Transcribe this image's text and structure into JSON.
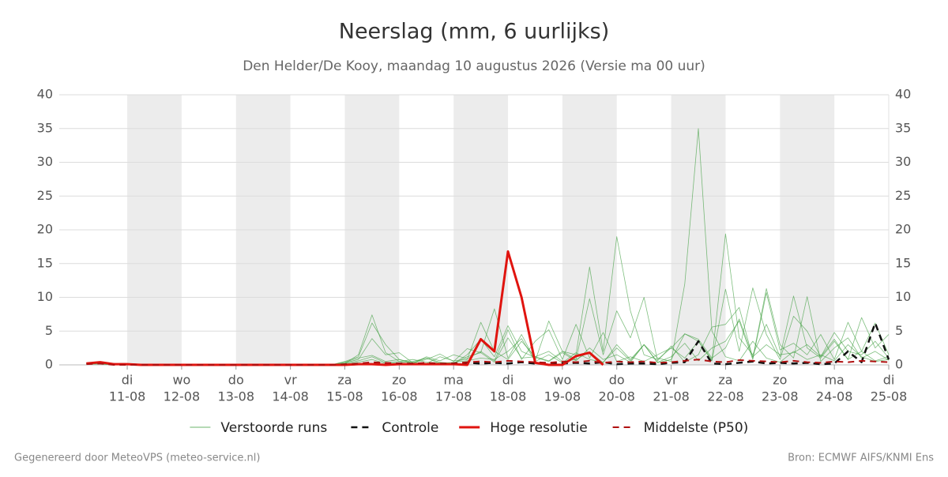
{
  "chart_data": {
    "type": "line",
    "title": "Neerslag (mm, 6 uurlijks)",
    "subtitle": "Den Helder/De Kooy, maandag 10 augustus 2026 (Versie ma 00 uur)",
    "footer_left": "Gegenereerd door MeteoVPS (meteo-service.nl)",
    "footer_right": "Bron: ECMWF AIFS/KNMI Ens",
    "x": [
      6,
      12,
      18,
      24,
      30,
      36,
      42,
      48,
      54,
      60,
      66,
      72,
      78,
      84,
      90,
      96,
      102,
      108,
      114,
      120,
      126,
      132,
      138,
      144,
      150,
      156,
      162,
      168,
      174,
      180,
      186,
      192,
      198,
      204,
      210,
      216,
      222,
      228,
      234,
      240,
      246,
      252,
      258,
      264,
      270,
      276,
      282,
      288,
      294,
      300,
      306,
      312,
      318,
      324,
      330,
      336,
      342,
      348,
      354,
      360
    ],
    "xlim": [
      -6,
      360
    ],
    "xticks": [
      {
        "value": 24,
        "day": "di",
        "label": "11-08"
      },
      {
        "value": 48,
        "day": "wo",
        "label": "12-08"
      },
      {
        "value": 72,
        "day": "do",
        "label": "13-08"
      },
      {
        "value": 96,
        "day": "vr",
        "label": "14-08"
      },
      {
        "value": 120,
        "day": "za",
        "label": "15-08"
      },
      {
        "value": 144,
        "day": "zo",
        "label": "16-08"
      },
      {
        "value": 168,
        "day": "ma",
        "label": "17-08"
      },
      {
        "value": 192,
        "day": "di",
        "label": "18-08"
      },
      {
        "value": 216,
        "day": "wo",
        "label": "19-08"
      },
      {
        "value": 240,
        "day": "do",
        "label": "20-08"
      },
      {
        "value": 264,
        "day": "vr",
        "label": "21-08"
      },
      {
        "value": 288,
        "day": "za",
        "label": "22-08"
      },
      {
        "value": 312,
        "day": "zo",
        "label": "23-08"
      },
      {
        "value": 336,
        "day": "ma",
        "label": "24-08"
      },
      {
        "value": 360,
        "day": "di",
        "label": "25-08"
      }
    ],
    "ylim": [
      0,
      40
    ],
    "yticks": [
      0,
      5,
      10,
      15,
      20,
      25,
      30,
      35,
      40
    ],
    "grid": true,
    "legend": "bottom",
    "series": [
      {
        "name": "Verstoorde runs",
        "color": "#3a9d3a",
        "width": 0.8,
        "dash": false,
        "members": [
          [
            0.3,
            0.4,
            0.1,
            0.1,
            0,
            0,
            0,
            0,
            0,
            0,
            0,
            0,
            0,
            0,
            0,
            0,
            0,
            0,
            0,
            0.2,
            1.5,
            7.4,
            1.8,
            0.5,
            0.3,
            1.0,
            0.4,
            0.2,
            1.5,
            3.8,
            1.2,
            5.8,
            2.0,
            1.1,
            0.5,
            1.8,
            0.6,
            2.5,
            0.8,
            1.5,
            0.4,
            3.0,
            1.0,
            0.5,
            12.0,
            35.0,
            5.0,
            1.2,
            0.6,
            3.5,
            1.0,
            0.4,
            2.0,
            0.8,
            1.5,
            0.6,
            3.0,
            1.2,
            0.5,
            0.8
          ],
          [
            0.2,
            0.3,
            0.1,
            0,
            0,
            0,
            0,
            0,
            0,
            0,
            0,
            0,
            0,
            0,
            0,
            0,
            0,
            0,
            0,
            0.5,
            1.2,
            6.2,
            3.0,
            0.8,
            0.4,
            0.2,
            1.2,
            0.6,
            0.8,
            6.3,
            2.0,
            0.8,
            3.5,
            1.2,
            0.6,
            2.0,
            1.5,
            14.5,
            2.0,
            19.0,
            8.0,
            1.5,
            0.8,
            2.5,
            1.0,
            3.5,
            0.8,
            19.4,
            4.0,
            1.5,
            6.0,
            1.2,
            10.2,
            2.5,
            1.0,
            3.5,
            0.8,
            2.0,
            0.6,
            1.2
          ],
          [
            0.1,
            0.2,
            0,
            0,
            0,
            0,
            0,
            0,
            0,
            0,
            0,
            0,
            0,
            0,
            0,
            0,
            0,
            0,
            0,
            0.3,
            0.8,
            3.9,
            1.5,
            1.8,
            0.3,
            0.8,
            1.6,
            0.5,
            2.4,
            1.8,
            8.3,
            1.0,
            4.5,
            0.6,
            6.5,
            2.0,
            0.8,
            9.8,
            1.5,
            8.0,
            4.0,
            10.0,
            0.6,
            2.8,
            0.4,
            1.5,
            5.6,
            6.0,
            8.5,
            1.0,
            11.3,
            3.0,
            1.0,
            10.1,
            0.5,
            2.5,
            4.0,
            1.0,
            2.0,
            0.7
          ],
          [
            0.2,
            0.3,
            0.1,
            0,
            0,
            0,
            0,
            0,
            0,
            0,
            0,
            0,
            0,
            0,
            0,
            0,
            0,
            0,
            0,
            0.4,
            1.0,
            1.4,
            0.5,
            0.8,
            0.2,
            1.2,
            0.6,
            1.5,
            0.9,
            2.0,
            0.6,
            5.2,
            0.8,
            3.5,
            5.2,
            0.8,
            6.0,
            1.0,
            4.8,
            0.5,
            1.2,
            0.5,
            1.5,
            2.5,
            4.6,
            3.5,
            0.6,
            11.2,
            2.0,
            11.4,
            4.5,
            0.8,
            7.2,
            5.0,
            1.2,
            3.8,
            0.8,
            7.0,
            2.5,
            4.5
          ],
          [
            0.2,
            0.2,
            0,
            0,
            0,
            0,
            0,
            0,
            0,
            0,
            0,
            0,
            0,
            0,
            0,
            0,
            0,
            0,
            0,
            0.2,
            0.6,
            1.2,
            0.3,
            0.5,
            0.8,
            0.4,
            0.3,
            0.2,
            1.2,
            1.8,
            0.4,
            4.0,
            1.0,
            1.2,
            2.0,
            0.5,
            0.8,
            1.9,
            0.3,
            3.0,
            0.8,
            3.0,
            0.4,
            1.2,
            3.2,
            0.6,
            2.5,
            3.5,
            6.5,
            0.8,
            10.7,
            2.2,
            3.2,
            1.5,
            4.5,
            0.8,
            6.3,
            2.0,
            6.2,
            1.5
          ],
          [
            0.1,
            0.1,
            0,
            0,
            0,
            0,
            0,
            0,
            0,
            0,
            0,
            0,
            0,
            0,
            0,
            0,
            0,
            0,
            0,
            0.1,
            0.4,
            0.8,
            0.2,
            0.3,
            0.5,
            1.0,
            0.2,
            0.4,
            0.6,
            1.0,
            0.8,
            2.0,
            3.9,
            0.5,
            1.5,
            0.3,
            1.8,
            0.8,
            0.4,
            2.5,
            0.6,
            3.0,
            0.3,
            0.8,
            4.6,
            3.8,
            1.0,
            2.5,
            6.8,
            1.2,
            3.0,
            1.5,
            1.8,
            3.0,
            1.2,
            4.8,
            2.0,
            1.5,
            3.5,
            1.0
          ]
        ]
      },
      {
        "name": "Controle",
        "color": "#111111",
        "width": 2.5,
        "dash": true,
        "values": [
          0.2,
          0.3,
          0.1,
          0.1,
          0,
          0,
          0,
          0,
          0,
          0,
          0,
          0,
          0,
          0,
          0,
          0,
          0,
          0,
          0,
          0,
          0.1,
          0.2,
          0.1,
          0.2,
          0.1,
          0.2,
          0.1,
          0.2,
          0.3,
          0.2,
          0.3,
          0.2,
          0.4,
          0.2,
          0.3,
          0.2,
          0.3,
          0.2,
          0.4,
          0.1,
          0.2,
          0.2,
          0.1,
          0.3,
          0.4,
          3.5,
          0.2,
          0.1,
          0.3,
          0.5,
          0.2,
          0.3,
          0.2,
          0.3,
          0.1,
          0.2,
          2.0,
          0.4,
          6.2,
          0.8
        ]
      },
      {
        "name": "Hoge resolutie",
        "color": "#e0140f",
        "width": 3,
        "dash": false,
        "values": [
          0.2,
          0.4,
          0.1,
          0.1,
          0,
          0,
          0,
          0,
          0,
          0,
          0,
          0,
          0,
          0,
          0,
          0,
          0,
          0,
          0,
          0,
          0.1,
          0.1,
          0,
          0.1,
          0.1,
          0.1,
          0.1,
          0.1,
          0,
          3.8,
          2.0,
          16.8,
          10.0,
          0.3,
          0,
          0,
          1.3,
          1.8,
          0,
          null,
          null,
          null,
          null,
          null,
          null,
          null,
          null,
          null,
          null,
          null,
          null,
          null,
          null,
          null,
          null,
          null,
          null,
          null,
          null,
          null
        ]
      },
      {
        "name": "Middelste (P50)",
        "color": "#b01010",
        "width": 2,
        "dash": true,
        "values": [
          0.1,
          0.2,
          0,
          0,
          0,
          0,
          0,
          0,
          0,
          0,
          0,
          0,
          0,
          0,
          0,
          0,
          0,
          0,
          0,
          0.1,
          0.2,
          0.4,
          0.3,
          0.2,
          0.2,
          0.3,
          0.2,
          0.2,
          0.4,
          0.5,
          0.4,
          0.6,
          0.5,
          0.4,
          0.3,
          0.5,
          0.4,
          0.6,
          0.3,
          0.5,
          0.4,
          0.5,
          0.3,
          0.4,
          0.6,
          0.8,
          0.5,
          0.4,
          0.7,
          0.6,
          0.5,
          0.4,
          0.6,
          0.4,
          0.3,
          0.5,
          0.4,
          0.6,
          0.5,
          0.4
        ]
      }
    ]
  }
}
